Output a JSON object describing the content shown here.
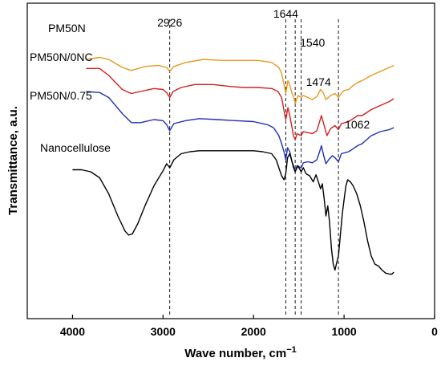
{
  "chart_data": {
    "type": "line",
    "xlabel_base": "Wave number, cm",
    "xlabel_sup": "−1",
    "ylabel": "Transmittance, a.u.",
    "xlim": [
      4500,
      0
    ],
    "x_ticks": [
      4000,
      3000,
      2000,
      1000,
      0
    ],
    "x_tick_labels": [
      "4000",
      "3000",
      "2000",
      "1000",
      "0"
    ],
    "y_axis_tick_labels": false,
    "grid": false,
    "legend": "inline labels at left of each curve",
    "markers": [
      {
        "x": 2926,
        "label": "2926"
      },
      {
        "x": 1644,
        "label": "1644"
      },
      {
        "x": 1540,
        "label": "1540"
      },
      {
        "x": 1474,
        "label": "1474"
      },
      {
        "x": 1062,
        "label": "1062"
      }
    ],
    "series": [
      {
        "name": "PM50N",
        "color": "#E69A1E",
        "points": [
          [
            3850,
            24
          ],
          [
            3700,
            22
          ],
          [
            3600,
            24
          ],
          [
            3450,
            32
          ],
          [
            3350,
            35
          ],
          [
            3200,
            31
          ],
          [
            3050,
            30
          ],
          [
            2960,
            32
          ],
          [
            2926,
            36
          ],
          [
            2880,
            31
          ],
          [
            2750,
            27
          ],
          [
            2550,
            24
          ],
          [
            2350,
            25
          ],
          [
            2150,
            25
          ],
          [
            1950,
            25
          ],
          [
            1800,
            27
          ],
          [
            1720,
            32
          ],
          [
            1690,
            38
          ],
          [
            1665,
            48
          ],
          [
            1644,
            58
          ],
          [
            1620,
            45
          ],
          [
            1600,
            50
          ],
          [
            1575,
            58
          ],
          [
            1555,
            62
          ],
          [
            1540,
            68
          ],
          [
            1510,
            60
          ],
          [
            1474,
            62
          ],
          [
            1450,
            60
          ],
          [
            1400,
            62
          ],
          [
            1350,
            64
          ],
          [
            1300,
            61
          ],
          [
            1260,
            54
          ],
          [
            1230,
            57
          ],
          [
            1200,
            64
          ],
          [
            1150,
            60
          ],
          [
            1100,
            58
          ],
          [
            1062,
            62
          ],
          [
            1030,
            58
          ],
          [
            1000,
            55
          ],
          [
            950,
            54
          ],
          [
            900,
            50
          ],
          [
            850,
            47
          ],
          [
            800,
            45
          ],
          [
            700,
            40
          ],
          [
            600,
            36
          ],
          [
            500,
            32
          ],
          [
            450,
            30
          ]
        ]
      },
      {
        "name": "PM50N/0NC",
        "color": "#D32020",
        "points": [
          [
            3850,
            33
          ],
          [
            3700,
            33
          ],
          [
            3600,
            40
          ],
          [
            3450,
            54
          ],
          [
            3350,
            58
          ],
          [
            3250,
            56
          ],
          [
            3100,
            53
          ],
          [
            3000,
            54
          ],
          [
            2960,
            57
          ],
          [
            2926,
            62
          ],
          [
            2890,
            56
          ],
          [
            2800,
            52
          ],
          [
            2650,
            49
          ],
          [
            2450,
            49
          ],
          [
            2250,
            51
          ],
          [
            2100,
            52
          ],
          [
            1950,
            52
          ],
          [
            1800,
            53
          ],
          [
            1730,
            56
          ],
          [
            1690,
            62
          ],
          [
            1670,
            72
          ],
          [
            1644,
            84
          ],
          [
            1620,
            72
          ],
          [
            1600,
            80
          ],
          [
            1575,
            92
          ],
          [
            1560,
            100
          ],
          [
            1540,
            104
          ],
          [
            1520,
            98
          ],
          [
            1474,
            100
          ],
          [
            1450,
            96
          ],
          [
            1400,
            97
          ],
          [
            1350,
            98
          ],
          [
            1300,
            95
          ],
          [
            1270,
            86
          ],
          [
            1250,
            80
          ],
          [
            1220,
            90
          ],
          [
            1190,
            100
          ],
          [
            1150,
            93
          ],
          [
            1100,
            90
          ],
          [
            1062,
            94
          ],
          [
            1030,
            88
          ],
          [
            990,
            87
          ],
          [
            950,
            86
          ],
          [
            900,
            83
          ],
          [
            850,
            80
          ],
          [
            800,
            80
          ],
          [
            700,
            74
          ],
          [
            600,
            70
          ],
          [
            500,
            66
          ],
          [
            450,
            63
          ]
        ]
      },
      {
        "name": "PM50N/0.75",
        "color": "#2030B8",
        "points": [
          [
            3850,
            56
          ],
          [
            3700,
            57
          ],
          [
            3600,
            62
          ],
          [
            3450,
            78
          ],
          [
            3350,
            87
          ],
          [
            3250,
            87
          ],
          [
            3100,
            84
          ],
          [
            3000,
            85
          ],
          [
            2960,
            89
          ],
          [
            2926,
            95
          ],
          [
            2880,
            88
          ],
          [
            2750,
            85
          ],
          [
            2600,
            83
          ],
          [
            2400,
            84
          ],
          [
            2200,
            85
          ],
          [
            2000,
            86
          ],
          [
            1850,
            89
          ],
          [
            1780,
            92
          ],
          [
            1720,
            100
          ],
          [
            1690,
            108
          ],
          [
            1664,
            116
          ],
          [
            1644,
            124
          ],
          [
            1625,
            112
          ],
          [
            1600,
            116
          ],
          [
            1575,
            126
          ],
          [
            1560,
            132
          ],
          [
            1540,
            136
          ],
          [
            1520,
            130
          ],
          [
            1474,
            132
          ],
          [
            1450,
            127
          ],
          [
            1400,
            126
          ],
          [
            1350,
            127
          ],
          [
            1300,
            124
          ],
          [
            1270,
            116
          ],
          [
            1250,
            110
          ],
          [
            1225,
            120
          ],
          [
            1200,
            128
          ],
          [
            1170,
            124
          ],
          [
            1130,
            120
          ],
          [
            1100,
            122
          ],
          [
            1062,
            126
          ],
          [
            1030,
            118
          ],
          [
            990,
            117
          ],
          [
            950,
            116
          ],
          [
            900,
            113
          ],
          [
            850,
            110
          ],
          [
            800,
            108
          ],
          [
            750,
            104
          ],
          [
            700,
            100
          ],
          [
            600,
            96
          ],
          [
            500,
            94
          ],
          [
            450,
            92
          ]
        ]
      },
      {
        "name": "Nanocellulose",
        "color": "#000000",
        "points": [
          [
            4000,
            134
          ],
          [
            3900,
            134
          ],
          [
            3800,
            136
          ],
          [
            3700,
            142
          ],
          [
            3600,
            158
          ],
          [
            3500,
            180
          ],
          [
            3420,
            195
          ],
          [
            3380,
            199
          ],
          [
            3340,
            198
          ],
          [
            3280,
            188
          ],
          [
            3200,
            170
          ],
          [
            3100,
            150
          ],
          [
            3000,
            135
          ],
          [
            2960,
            128
          ],
          [
            2926,
            132
          ],
          [
            2880,
            124
          ],
          [
            2800,
            118
          ],
          [
            2700,
            116
          ],
          [
            2600,
            115
          ],
          [
            2500,
            115
          ],
          [
            2400,
            115
          ],
          [
            2300,
            115
          ],
          [
            2200,
            115
          ],
          [
            2100,
            115
          ],
          [
            2000,
            115
          ],
          [
            1900,
            116
          ],
          [
            1800,
            118
          ],
          [
            1750,
            124
          ],
          [
            1720,
            132
          ],
          [
            1690,
            140
          ],
          [
            1664,
            144
          ],
          [
            1644,
            138
          ],
          [
            1625,
            122
          ],
          [
            1600,
            118
          ],
          [
            1575,
            126
          ],
          [
            1560,
            130
          ],
          [
            1540,
            136
          ],
          [
            1510,
            130
          ],
          [
            1474,
            136
          ],
          [
            1450,
            132
          ],
          [
            1420,
            138
          ],
          [
            1380,
            140
          ],
          [
            1340,
            146
          ],
          [
            1310,
            139
          ],
          [
            1280,
            147
          ],
          [
            1260,
            153
          ],
          [
            1240,
            148
          ],
          [
            1220,
            163
          ],
          [
            1200,
            180
          ],
          [
            1180,
            170
          ],
          [
            1160,
            186
          ],
          [
            1140,
            212
          ],
          [
            1120,
            228
          ],
          [
            1100,
            234
          ],
          [
            1080,
            226
          ],
          [
            1062,
            220
          ],
          [
            1040,
            198
          ],
          [
            1020,
            178
          ],
          [
            1000,
            164
          ],
          [
            980,
            150
          ],
          [
            960,
            144
          ],
          [
            930,
            146
          ],
          [
            900,
            150
          ],
          [
            860,
            158
          ],
          [
            820,
            170
          ],
          [
            780,
            186
          ],
          [
            740,
            205
          ],
          [
            700,
            220
          ],
          [
            660,
            228
          ],
          [
            620,
            230
          ],
          [
            580,
            234
          ],
          [
            540,
            237
          ],
          [
            500,
            238
          ],
          [
            470,
            238
          ],
          [
            450,
            236
          ]
        ]
      }
    ],
    "series_label_texts": [
      "PM50N",
      "PM50N/0NC",
      "PM50N/0.75",
      "Nanocellulose"
    ]
  }
}
